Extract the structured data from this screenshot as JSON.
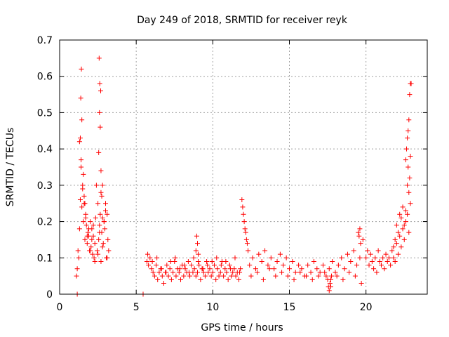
{
  "chart_data": {
    "type": "scatter",
    "title": "Day 249 of 2018, SRMTID for receiver reyk",
    "xlabel": "GPS time / hours",
    "ylabel": "SRMTID / TECUs",
    "xlim": [
      0,
      24
    ],
    "ylim": [
      0,
      0.7
    ],
    "xticks": [
      0,
      5,
      10,
      15,
      20
    ],
    "yticks": [
      0,
      0.1,
      0.2,
      0.3,
      0.4,
      0.5,
      0.6,
      0.7
    ],
    "grid": true,
    "marker": "+",
    "color": "#ff0000",
    "series": [
      {
        "name": "SRMTID",
        "x": [
          1.1,
          1.15,
          1.2,
          1.25,
          1.3,
          1.35,
          1.4,
          1.45,
          1.5,
          1.55,
          1.6,
          1.65,
          1.7,
          1.75,
          1.8,
          1.85,
          1.9,
          1.95,
          2.0,
          2.05,
          2.1,
          2.15,
          2.2,
          2.25,
          2.3,
          2.35,
          2.4,
          2.45,
          2.5,
          2.55,
          2.6,
          2.65,
          2.7,
          2.75,
          2.8,
          2.85,
          2.9,
          2.95,
          3.0,
          3.05,
          3.1,
          3.15,
          3.2,
          1.3,
          1.4,
          1.5,
          1.6,
          1.7,
          1.8,
          1.9,
          2.0,
          2.1,
          2.2,
          2.3,
          2.5,
          2.6,
          2.7,
          2.8,
          2.9,
          3.0,
          3.1,
          1.35,
          1.45,
          1.55,
          1.65,
          2.55,
          2.6,
          2.65,
          2.7,
          2.75,
          2.8,
          1.38,
          1.42,
          2.58,
          2.62,
          2.68,
          5.7,
          5.8,
          5.9,
          6.0,
          6.1,
          6.2,
          6.3,
          6.4,
          6.5,
          6.6,
          6.7,
          6.8,
          6.9,
          7.0,
          7.1,
          7.2,
          7.3,
          7.4,
          7.5,
          7.6,
          7.7,
          7.8,
          7.9,
          8.0,
          8.1,
          8.2,
          8.3,
          8.4,
          8.5,
          8.6,
          8.7,
          8.8,
          8.9,
          9.0,
          9.1,
          9.2,
          9.3,
          9.4,
          9.5,
          9.6,
          9.7,
          9.8,
          9.9,
          10.0,
          10.1,
          10.2,
          10.3,
          10.4,
          10.5,
          10.6,
          10.7,
          10.8,
          10.9,
          11.0,
          11.1,
          11.2,
          11.3,
          11.4,
          11.5,
          11.6,
          11.7,
          11.8,
          5.75,
          6.05,
          6.35,
          6.65,
          6.95,
          7.25,
          7.55,
          7.85,
          8.15,
          8.45,
          8.75,
          9.05,
          9.35,
          9.65,
          9.95,
          10.25,
          10.55,
          10.85,
          11.15,
          11.45,
          11.75,
          8.9,
          8.95,
          9.0,
          9.05,
          11.9,
          11.95,
          12.0,
          12.05,
          12.1,
          12.15,
          12.2,
          12.25,
          12.3,
          12.4,
          12.6,
          12.8,
          13.0,
          13.2,
          13.4,
          13.6,
          13.8,
          14.0,
          14.2,
          14.4,
          14.6,
          14.8,
          15.0,
          15.2,
          15.4,
          15.6,
          15.8,
          16.0,
          16.2,
          16.4,
          16.6,
          16.8,
          17.0,
          17.2,
          17.4,
          17.6,
          17.8,
          18.0,
          18.2,
          18.4,
          18.6,
          18.8,
          19.0,
          19.2,
          19.4,
          19.6,
          19.8,
          12.5,
          12.9,
          13.3,
          13.7,
          14.1,
          14.5,
          14.9,
          15.3,
          15.7,
          16.1,
          16.5,
          16.9,
          17.3,
          17.7,
          18.1,
          18.5,
          18.9,
          19.3,
          19.7,
          17.5,
          17.55,
          17.6,
          17.65,
          17.7,
          17.75,
          19.5,
          19.55,
          19.6,
          19.65,
          20.0,
          20.1,
          20.2,
          20.3,
          20.4,
          20.5,
          20.6,
          20.7,
          20.8,
          20.9,
          21.0,
          21.1,
          21.2,
          21.3,
          21.4,
          21.5,
          21.6,
          21.7,
          21.8,
          21.9,
          22.0,
          22.1,
          22.2,
          22.3,
          22.4,
          22.5,
          22.6,
          22.7,
          22.8,
          22.9,
          21.8,
          21.9,
          22.0,
          22.1,
          22.2,
          22.3,
          22.4,
          22.5,
          22.6,
          22.7,
          22.75,
          22.8,
          22.85,
          22.9,
          22.6,
          22.65,
          22.7,
          22.75,
          22.8,
          22.85,
          22.9,
          22.95,
          1.15,
          5.45
        ],
        "y": [
          0.05,
          0.07,
          0.12,
          0.1,
          0.18,
          0.26,
          0.35,
          0.24,
          0.3,
          0.2,
          0.25,
          0.15,
          0.22,
          0.19,
          0.14,
          0.17,
          0.16,
          0.12,
          0.2,
          0.13,
          0.18,
          0.11,
          0.16,
          0.1,
          0.14,
          0.21,
          0.3,
          0.12,
          0.25,
          0.15,
          0.19,
          0.22,
          0.28,
          0.17,
          0.21,
          0.14,
          0.2,
          0.18,
          0.25,
          0.1,
          0.22,
          0.15,
          0.12,
          0.42,
          0.37,
          0.29,
          0.27,
          0.21,
          0.16,
          0.18,
          0.12,
          0.15,
          0.19,
          0.09,
          0.11,
          0.17,
          0.09,
          0.13,
          0.2,
          0.23,
          0.1,
          0.43,
          0.48,
          0.33,
          0.25,
          0.39,
          0.5,
          0.46,
          0.34,
          0.27,
          0.3,
          0.54,
          0.62,
          0.65,
          0.58,
          0.56,
          0.09,
          0.08,
          0.1,
          0.07,
          0.06,
          0.05,
          0.08,
          0.04,
          0.06,
          0.07,
          0.05,
          0.03,
          0.06,
          0.08,
          0.05,
          0.07,
          0.04,
          0.06,
          0.09,
          0.05,
          0.07,
          0.06,
          0.04,
          0.08,
          0.05,
          0.07,
          0.06,
          0.09,
          0.05,
          0.08,
          0.06,
          0.07,
          0.05,
          0.06,
          0.08,
          0.04,
          0.07,
          0.06,
          0.05,
          0.09,
          0.06,
          0.07,
          0.05,
          0.06,
          0.08,
          0.04,
          0.07,
          0.05,
          0.06,
          0.09,
          0.05,
          0.07,
          0.06,
          0.04,
          0.08,
          0.05,
          0.06,
          0.07,
          0.05,
          0.06,
          0.04,
          0.07,
          0.11,
          0.09,
          0.1,
          0.07,
          0.06,
          0.09,
          0.1,
          0.07,
          0.08,
          0.06,
          0.1,
          0.09,
          0.07,
          0.08,
          0.09,
          0.1,
          0.08,
          0.09,
          0.07,
          0.1,
          0.06,
          0.12,
          0.16,
          0.14,
          0.11,
          0.26,
          0.24,
          0.22,
          0.2,
          0.18,
          0.17,
          0.15,
          0.14,
          0.12,
          0.08,
          0.1,
          0.07,
          0.11,
          0.09,
          0.12,
          0.08,
          0.1,
          0.07,
          0.09,
          0.11,
          0.08,
          0.1,
          0.07,
          0.09,
          0.06,
          0.08,
          0.07,
          0.05,
          0.08,
          0.06,
          0.09,
          0.07,
          0.06,
          0.08,
          0.05,
          0.07,
          0.09,
          0.06,
          0.08,
          0.1,
          0.07,
          0.11,
          0.09,
          0.12,
          0.08,
          0.1,
          0.15,
          0.05,
          0.06,
          0.04,
          0.07,
          0.05,
          0.06,
          0.05,
          0.04,
          0.06,
          0.05,
          0.04,
          0.05,
          0.06,
          0.04,
          0.05,
          0.04,
          0.06,
          0.05,
          0.03,
          0.04,
          0.02,
          0.01,
          0.03,
          0.02,
          0.05,
          0.17,
          0.16,
          0.18,
          0.14,
          0.1,
          0.12,
          0.08,
          0.11,
          0.09,
          0.07,
          0.1,
          0.06,
          0.12,
          0.09,
          0.08,
          0.1,
          0.07,
          0.11,
          0.09,
          0.1,
          0.08,
          0.12,
          0.1,
          0.09,
          0.14,
          0.11,
          0.16,
          0.13,
          0.18,
          0.15,
          0.2,
          0.22,
          0.17,
          0.25,
          0.13,
          0.15,
          0.19,
          0.17,
          0.22,
          0.21,
          0.24,
          0.19,
          0.23,
          0.3,
          0.35,
          0.28,
          0.32,
          0.38,
          0.37,
          0.4,
          0.43,
          0.45,
          0.48,
          0.55,
          0.58,
          0.58,
          0.0,
          0.0
        ]
      }
    ]
  }
}
